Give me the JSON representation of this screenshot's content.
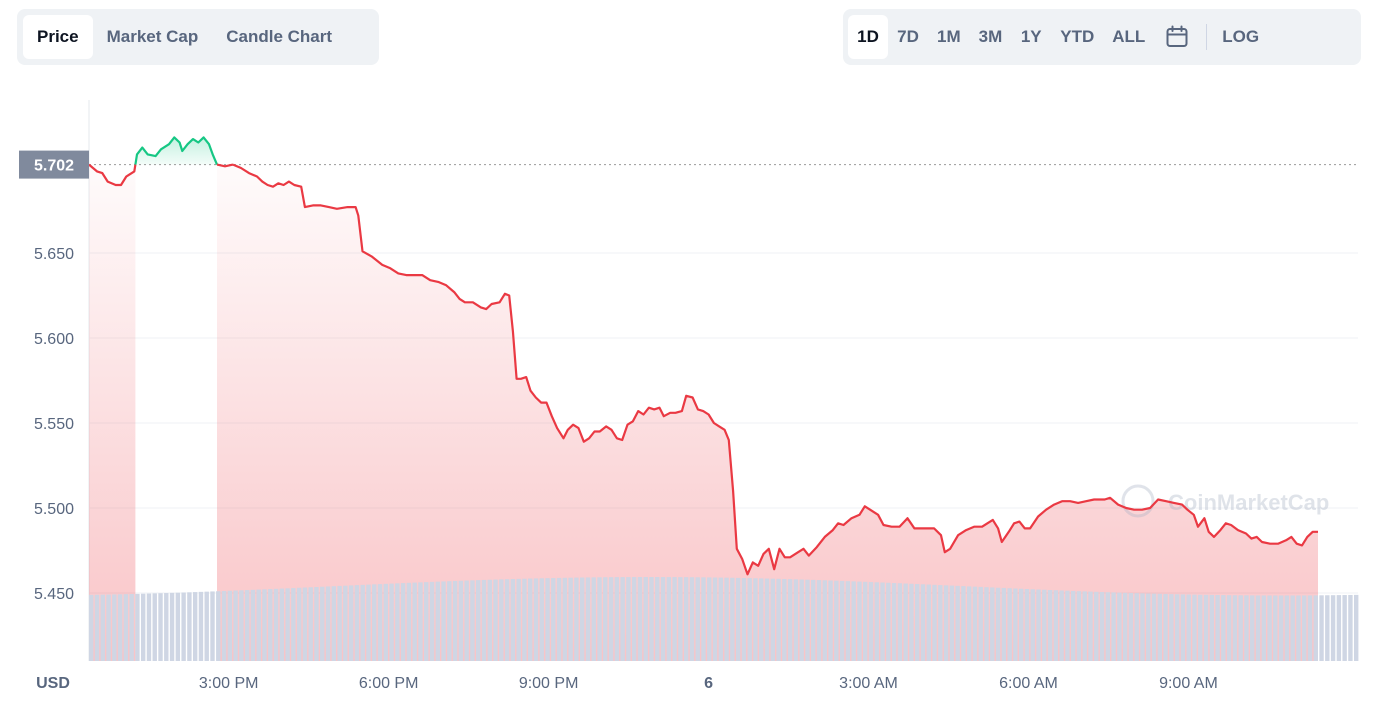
{
  "tabs": [
    {
      "label": "Price",
      "active": true
    },
    {
      "label": "Market Cap",
      "active": false
    },
    {
      "label": "Candle Chart",
      "active": false
    }
  ],
  "ranges": [
    {
      "label": "1D",
      "active": true
    },
    {
      "label": "7D",
      "active": false
    },
    {
      "label": "1M",
      "active": false
    },
    {
      "label": "3M",
      "active": false
    },
    {
      "label": "1Y",
      "active": false
    },
    {
      "label": "YTD",
      "active": false
    },
    {
      "label": "ALL",
      "active": false
    }
  ],
  "calendar_icon": "calendar-icon",
  "log_label": "LOG",
  "watermark": "CoinMarketCap",
  "colors": {
    "up": "#16c784",
    "down": "#ea3943",
    "volume": "#cfd6e4",
    "baseline_tag": "#808a9d"
  },
  "chart_data": {
    "type": "line",
    "currency_label": "USD",
    "baseline_value": "5.702",
    "y_ticks": [
      "5.650",
      "5.600",
      "5.550",
      "5.500",
      "5.450"
    ],
    "ylim": [
      5.41,
      5.74
    ],
    "x_ticks": [
      "3:00 PM",
      "6:00 PM",
      "9:00 PM",
      "6",
      "3:00 AM",
      "6:00 AM",
      "9:00 AM"
    ],
    "xlim_hours": [
      0,
      23.8
    ],
    "x_tick_hours": [
      2.62,
      5.62,
      8.62,
      11.62,
      14.62,
      17.62,
      20.62
    ],
    "series": [
      {
        "values": [
          [
            0.0,
            5.702
          ],
          [
            0.15,
            5.698
          ],
          [
            0.25,
            5.697
          ],
          [
            0.35,
            5.692
          ],
          [
            0.5,
            5.69
          ],
          [
            0.6,
            5.69
          ],
          [
            0.7,
            5.695
          ],
          [
            0.85,
            5.698
          ],
          [
            0.9,
            5.708
          ],
          [
            1.0,
            5.712
          ],
          [
            1.1,
            5.708
          ],
          [
            1.25,
            5.707
          ],
          [
            1.35,
            5.711
          ],
          [
            1.5,
            5.714
          ],
          [
            1.6,
            5.718
          ],
          [
            1.7,
            5.715
          ],
          [
            1.75,
            5.71
          ],
          [
            1.85,
            5.714
          ],
          [
            1.95,
            5.717
          ],
          [
            2.05,
            5.715
          ],
          [
            2.15,
            5.718
          ],
          [
            2.25,
            5.714
          ],
          [
            2.32,
            5.708
          ],
          [
            2.4,
            5.702
          ],
          [
            2.55,
            5.701
          ],
          [
            2.7,
            5.702
          ],
          [
            2.85,
            5.7
          ],
          [
            3.0,
            5.697
          ],
          [
            3.15,
            5.695
          ],
          [
            3.25,
            5.692
          ],
          [
            3.35,
            5.69
          ],
          [
            3.45,
            5.689
          ],
          [
            3.55,
            5.691
          ],
          [
            3.65,
            5.69
          ],
          [
            3.75,
            5.692
          ],
          [
            3.85,
            5.69
          ],
          [
            3.98,
            5.689
          ],
          [
            4.05,
            5.677
          ],
          [
            4.2,
            5.678
          ],
          [
            4.35,
            5.678
          ],
          [
            4.5,
            5.677
          ],
          [
            4.65,
            5.676
          ],
          [
            4.85,
            5.677
          ],
          [
            5.0,
            5.677
          ],
          [
            5.05,
            5.672
          ],
          [
            5.13,
            5.651
          ],
          [
            5.3,
            5.648
          ],
          [
            5.5,
            5.643
          ],
          [
            5.65,
            5.641
          ],
          [
            5.8,
            5.638
          ],
          [
            5.95,
            5.637
          ],
          [
            6.1,
            5.637
          ],
          [
            6.25,
            5.637
          ],
          [
            6.4,
            5.634
          ],
          [
            6.55,
            5.633
          ],
          [
            6.7,
            5.631
          ],
          [
            6.85,
            5.627
          ],
          [
            6.95,
            5.623
          ],
          [
            7.05,
            5.621
          ],
          [
            7.2,
            5.621
          ],
          [
            7.35,
            5.618
          ],
          [
            7.45,
            5.617
          ],
          [
            7.55,
            5.62
          ],
          [
            7.7,
            5.621
          ],
          [
            7.8,
            5.626
          ],
          [
            7.88,
            5.625
          ],
          [
            7.95,
            5.604
          ],
          [
            8.02,
            5.576
          ],
          [
            8.1,
            5.576
          ],
          [
            8.2,
            5.577
          ],
          [
            8.28,
            5.569
          ],
          [
            8.38,
            5.565
          ],
          [
            8.48,
            5.562
          ],
          [
            8.58,
            5.562
          ],
          [
            8.68,
            5.554
          ],
          [
            8.78,
            5.547
          ],
          [
            8.9,
            5.541
          ],
          [
            8.98,
            5.546
          ],
          [
            9.08,
            5.549
          ],
          [
            9.18,
            5.547
          ],
          [
            9.28,
            5.539
          ],
          [
            9.38,
            5.541
          ],
          [
            9.48,
            5.545
          ],
          [
            9.58,
            5.545
          ],
          [
            9.7,
            5.548
          ],
          [
            9.8,
            5.546
          ],
          [
            9.9,
            5.541
          ],
          [
            10.0,
            5.54
          ],
          [
            10.1,
            5.549
          ],
          [
            10.2,
            5.551
          ],
          [
            10.3,
            5.557
          ],
          [
            10.4,
            5.555
          ],
          [
            10.5,
            5.559
          ],
          [
            10.6,
            5.558
          ],
          [
            10.7,
            5.559
          ],
          [
            10.78,
            5.554
          ],
          [
            10.9,
            5.556
          ],
          [
            11.0,
            5.556
          ],
          [
            11.12,
            5.557
          ],
          [
            11.2,
            5.566
          ],
          [
            11.32,
            5.565
          ],
          [
            11.42,
            5.558
          ],
          [
            11.52,
            5.557
          ],
          [
            11.62,
            5.555
          ],
          [
            11.72,
            5.55
          ],
          [
            11.82,
            5.548
          ],
          [
            11.92,
            5.546
          ],
          [
            12.0,
            5.54
          ],
          [
            12.08,
            5.51
          ],
          [
            12.15,
            5.476
          ],
          [
            12.25,
            5.47
          ],
          [
            12.35,
            5.461
          ],
          [
            12.45,
            5.468
          ],
          [
            12.55,
            5.466
          ],
          [
            12.65,
            5.473
          ],
          [
            12.75,
            5.476
          ],
          [
            12.85,
            5.464
          ],
          [
            12.95,
            5.476
          ],
          [
            13.05,
            5.471
          ],
          [
            13.15,
            5.471
          ],
          [
            13.3,
            5.474
          ],
          [
            13.4,
            5.476
          ],
          [
            13.5,
            5.472
          ],
          [
            13.65,
            5.477
          ],
          [
            13.8,
            5.483
          ],
          [
            13.95,
            5.487
          ],
          [
            14.05,
            5.491
          ],
          [
            14.15,
            5.49
          ],
          [
            14.3,
            5.494
          ],
          [
            14.45,
            5.496
          ],
          [
            14.55,
            5.501
          ],
          [
            14.65,
            5.499
          ],
          [
            14.8,
            5.496
          ],
          [
            14.9,
            5.49
          ],
          [
            15.05,
            5.489
          ],
          [
            15.2,
            5.489
          ],
          [
            15.35,
            5.494
          ],
          [
            15.48,
            5.488
          ],
          [
            15.65,
            5.488
          ],
          [
            15.85,
            5.488
          ],
          [
            15.98,
            5.484
          ],
          [
            16.05,
            5.474
          ],
          [
            16.15,
            5.476
          ],
          [
            16.3,
            5.484
          ],
          [
            16.45,
            5.487
          ],
          [
            16.6,
            5.489
          ],
          [
            16.75,
            5.489
          ],
          [
            16.85,
            5.491
          ],
          [
            16.95,
            5.493
          ],
          [
            17.05,
            5.488
          ],
          [
            17.12,
            5.48
          ],
          [
            17.25,
            5.486
          ],
          [
            17.35,
            5.491
          ],
          [
            17.45,
            5.492
          ],
          [
            17.55,
            5.488
          ],
          [
            17.65,
            5.488
          ],
          [
            17.8,
            5.495
          ],
          [
            17.95,
            5.499
          ],
          [
            18.1,
            5.502
          ],
          [
            18.25,
            5.504
          ],
          [
            18.4,
            5.504
          ],
          [
            18.55,
            5.503
          ],
          [
            18.7,
            5.504
          ],
          [
            18.85,
            5.505
          ],
          [
            18.95,
            5.505
          ],
          [
            19.05,
            5.505
          ],
          [
            19.15,
            5.506
          ],
          [
            19.3,
            5.502
          ],
          [
            19.45,
            5.5
          ],
          [
            19.6,
            5.499
          ],
          [
            19.75,
            5.499
          ],
          [
            19.9,
            5.5
          ],
          [
            20.05,
            5.505
          ],
          [
            20.2,
            5.504
          ],
          [
            20.35,
            5.503
          ],
          [
            20.5,
            5.502
          ],
          [
            20.6,
            5.499
          ],
          [
            20.72,
            5.496
          ],
          [
            20.8,
            5.489
          ],
          [
            20.92,
            5.494
          ],
          [
            21.0,
            5.486
          ],
          [
            21.1,
            5.483
          ],
          [
            21.22,
            5.487
          ],
          [
            21.32,
            5.491
          ],
          [
            21.42,
            5.49
          ],
          [
            21.55,
            5.487
          ],
          [
            21.7,
            5.485
          ],
          [
            21.8,
            5.482
          ],
          [
            21.9,
            5.483
          ],
          [
            22.0,
            5.48
          ],
          [
            22.15,
            5.479
          ],
          [
            22.3,
            5.479
          ],
          [
            22.45,
            5.481
          ],
          [
            22.55,
            5.483
          ],
          [
            22.65,
            5.479
          ],
          [
            22.75,
            5.478
          ],
          [
            22.85,
            5.483
          ],
          [
            22.95,
            5.486
          ],
          [
            23.05,
            5.486
          ]
        ]
      }
    ],
    "volume": {
      "min_level": 0.78,
      "max_level": 1.0
    }
  }
}
